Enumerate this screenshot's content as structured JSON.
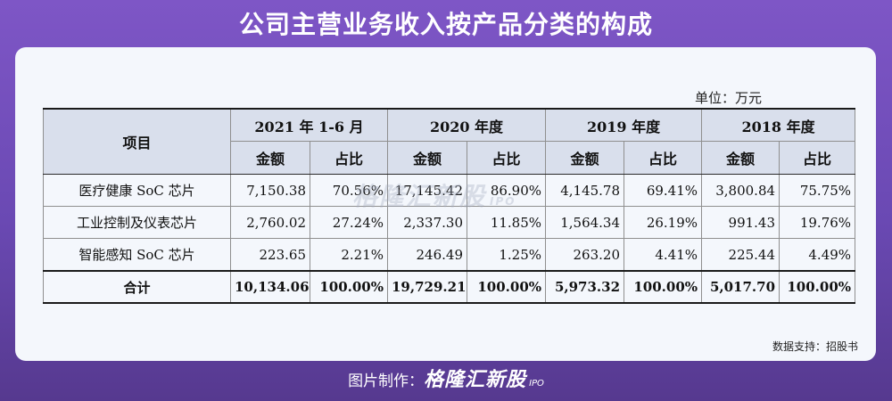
{
  "title": "公司主营业务收入按产品分类的构成",
  "unit": "单位：万元",
  "watermark": {
    "brand": "格隆汇新股",
    "sub": "IPO"
  },
  "table": {
    "item_header": "项目",
    "periods": [
      "2021 年 1-6 月",
      "2020 年度",
      "2019 年度",
      "2018 年度"
    ],
    "subheaders": {
      "amount": "金额",
      "ratio": "占比"
    },
    "rows": [
      {
        "name": "医疗健康 SoC 芯片",
        "cells": [
          "7,150.38",
          "70.56%",
          "17,145.42",
          "86.90%",
          "4,145.78",
          "69.41%",
          "3,800.84",
          "75.75%"
        ]
      },
      {
        "name": "工业控制及仪表芯片",
        "cells": [
          "2,760.02",
          "27.24%",
          "2,337.30",
          "11.85%",
          "1,564.34",
          "26.19%",
          "991.43",
          "19.76%"
        ]
      },
      {
        "name": "智能感知 SoC 芯片",
        "cells": [
          "223.65",
          "2.21%",
          "246.49",
          "1.25%",
          "263.20",
          "4.41%",
          "225.44",
          "4.49%"
        ]
      }
    ],
    "total": {
      "name": "合计",
      "cells": [
        "10,134.06",
        "100.00%",
        "19,729.21",
        "100.00%",
        "5,973.32",
        "100.00%",
        "5,017.70",
        "100.00%"
      ]
    }
  },
  "source": "数据支持：招股书",
  "footer": {
    "label": "图片制作：",
    "brand": "格隆汇新股",
    "sub": "IPO"
  }
}
